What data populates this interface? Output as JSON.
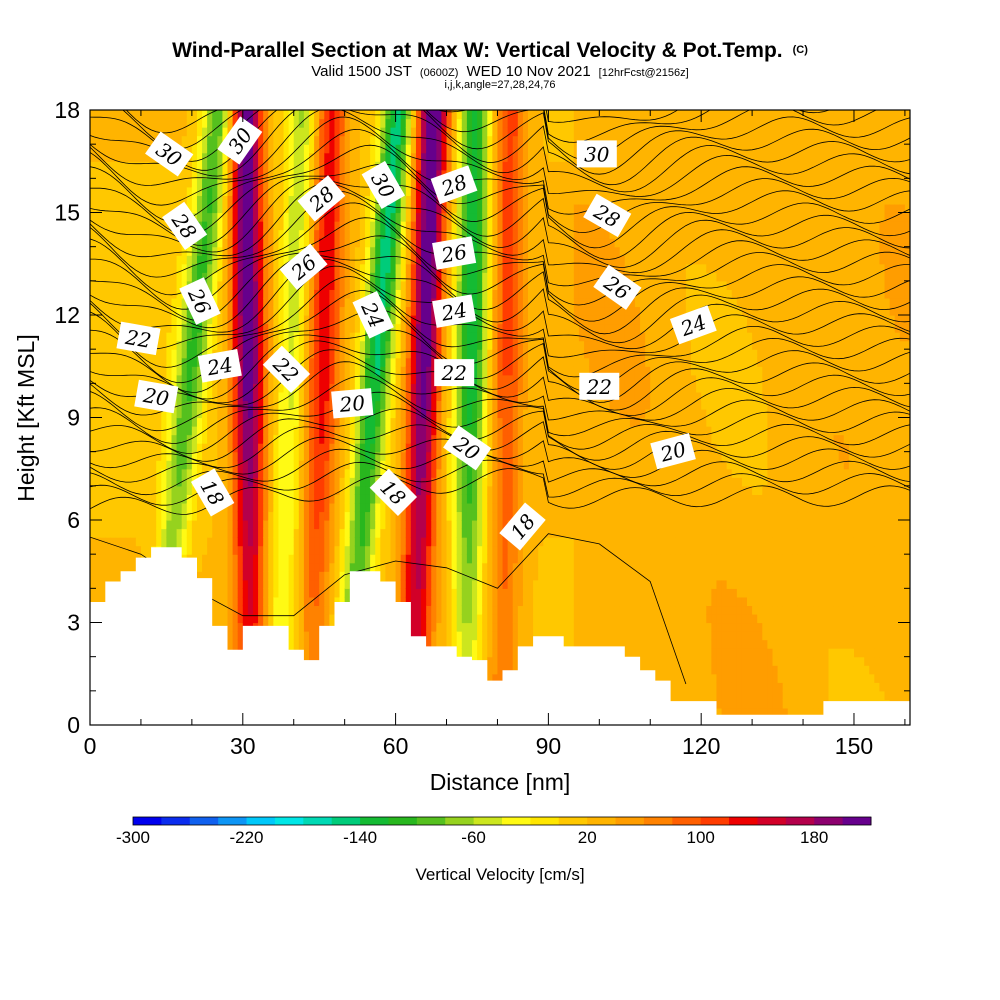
{
  "chart_data": {
    "type": "heatmap",
    "title": "Wind-Parallel Section at Max W: Vertical Velocity & Pot.Temp.",
    "title_mark": "(C)",
    "subtitle": {
      "valid": "Valid 1500 JST",
      "utc": "(0600Z)",
      "date": "WED 10 Nov 2021",
      "forecast": "[12hrFcst@2156z]",
      "indices": "i,j,k,angle=27,28,24,76"
    },
    "xlabel": "Distance [nm]",
    "ylabel": "Height [Kft MSL]",
    "xlim": [
      0,
      161
    ],
    "ylim": [
      0,
      18
    ],
    "x_ticks": [
      "0",
      "30",
      "60",
      "90",
      "120",
      "150"
    ],
    "y_ticks": [
      "0",
      "3",
      "6",
      "9",
      "12",
      "15",
      "18"
    ],
    "colorbar": {
      "label": "Vertical Velocity [cm/s]",
      "range": [
        -300,
        220
      ],
      "tick_labels": [
        "-300",
        "-220",
        "-140",
        "-60",
        "20",
        "100",
        "180"
      ],
      "colors": [
        "#0000ee",
        "#0a2cee",
        "#1060ee",
        "#0d95f5",
        "#00c8fa",
        "#00e6e6",
        "#00d9b4",
        "#00cc7a",
        "#14bb33",
        "#28b71e",
        "#55c01e",
        "#96d21e",
        "#cce61e",
        "#fffa14",
        "#ffe600",
        "#ffc800",
        "#ffb400",
        "#ff9d00",
        "#ff8200",
        "#ff5f00",
        "#ff3c00",
        "#ee0000",
        "#d20028",
        "#b4004b",
        "#8c006e",
        "#66008c"
      ]
    },
    "vertical_velocity_bands": [
      {
        "x_center": 21,
        "slope_nm_per_kft": 0.72,
        "peak_cm_s": -120
      },
      {
        "x_center": 31,
        "slope_nm_per_kft": -0.05,
        "peak_cm_s": 200
      },
      {
        "x_center": 40,
        "slope_nm_per_kft": 0.28,
        "peak_cm_s": -80
      },
      {
        "x_center": 46,
        "slope_nm_per_kft": 0.22,
        "peak_cm_s": 110
      },
      {
        "x_center": 57,
        "slope_nm_per_kft": 0.58,
        "peak_cm_s": -170
      },
      {
        "x_center": 66,
        "slope_nm_per_kft": 0.22,
        "peak_cm_s": 210
      },
      {
        "x_center": 75,
        "slope_nm_per_kft": 0.1,
        "peak_cm_s": -150
      },
      {
        "x_center": 82,
        "slope_nm_per_kft": 0.08,
        "peak_cm_s": 90
      }
    ],
    "terrain_kft": [
      [
        0,
        3.6
      ],
      [
        3,
        4.2
      ],
      [
        6,
        4.5
      ],
      [
        9,
        4.9
      ],
      [
        12,
        5.2
      ],
      [
        18,
        4.9
      ],
      [
        21,
        4.3
      ],
      [
        24,
        2.9
      ],
      [
        27,
        2.2
      ],
      [
        30,
        2.9
      ],
      [
        39,
        2.2
      ],
      [
        42,
        1.9
      ],
      [
        45,
        2.9
      ],
      [
        48,
        3.6
      ],
      [
        51,
        4.5
      ],
      [
        57,
        4.2
      ],
      [
        60,
        3.6
      ],
      [
        63,
        2.6
      ],
      [
        66,
        2.3
      ],
      [
        72,
        2.0
      ],
      [
        75,
        1.9
      ],
      [
        78,
        1.3
      ],
      [
        81,
        1.6
      ],
      [
        84,
        2.3
      ],
      [
        87,
        2.6
      ],
      [
        93,
        2.3
      ],
      [
        105,
        2.0
      ],
      [
        108,
        1.6
      ],
      [
        111,
        1.3
      ],
      [
        114,
        0.7
      ],
      [
        120,
        0.7
      ],
      [
        123,
        0.3
      ],
      [
        141,
        0.3
      ],
      [
        144,
        0.7
      ],
      [
        161,
        0.7
      ]
    ],
    "potential_temperature_contours": {
      "units": "C",
      "labels": [
        {
          "text": "30",
          "x": 15.5,
          "y": 16.7,
          "angle": 35
        },
        {
          "text": "30",
          "x": 29.5,
          "y": 17.1,
          "angle": -55
        },
        {
          "text": "28",
          "x": 18.5,
          "y": 14.6,
          "angle": 55
        },
        {
          "text": "28",
          "x": 45.5,
          "y": 15.4,
          "angle": -40
        },
        {
          "text": "30",
          "x": 57.5,
          "y": 15.8,
          "angle": 60
        },
        {
          "text": "28",
          "x": 71.5,
          "y": 15.8,
          "angle": -20
        },
        {
          "text": "30",
          "x": 99.5,
          "y": 16.7,
          "angle": 0
        },
        {
          "text": "28",
          "x": 101.5,
          "y": 14.9,
          "angle": 30
        },
        {
          "text": "26",
          "x": 21.5,
          "y": 12.4,
          "angle": 65
        },
        {
          "text": "26",
          "x": 42,
          "y": 13.4,
          "angle": -40
        },
        {
          "text": "26",
          "x": 71.5,
          "y": 13.8,
          "angle": -10
        },
        {
          "text": "26",
          "x": 103.5,
          "y": 12.8,
          "angle": 35
        },
        {
          "text": "24",
          "x": 55.5,
          "y": 12.0,
          "angle": 65
        },
        {
          "text": "24",
          "x": 71.5,
          "y": 12.1,
          "angle": -10
        },
        {
          "text": "24",
          "x": 118.5,
          "y": 11.7,
          "angle": -20
        },
        {
          "text": "22",
          "x": 9.5,
          "y": 11.3,
          "angle": 10
        },
        {
          "text": "24",
          "x": 25.5,
          "y": 10.5,
          "angle": -10
        },
        {
          "text": "22",
          "x": 38.5,
          "y": 10.4,
          "angle": 45
        },
        {
          "text": "22",
          "x": 71.5,
          "y": 10.3,
          "angle": 0
        },
        {
          "text": "22",
          "x": 100,
          "y": 9.9,
          "angle": 0
        },
        {
          "text": "20",
          "x": 13,
          "y": 9.6,
          "angle": 10
        },
        {
          "text": "20",
          "x": 51.5,
          "y": 9.4,
          "angle": -5
        },
        {
          "text": "20",
          "x": 74,
          "y": 8.1,
          "angle": 35
        },
        {
          "text": "20",
          "x": 114.5,
          "y": 8.0,
          "angle": -15
        },
        {
          "text": "18",
          "x": 24,
          "y": 6.8,
          "angle": 60
        },
        {
          "text": "18",
          "x": 59.5,
          "y": 6.8,
          "angle": 45
        },
        {
          "text": "18",
          "x": 85,
          "y": 5.8,
          "angle": -50
        }
      ]
    }
  }
}
